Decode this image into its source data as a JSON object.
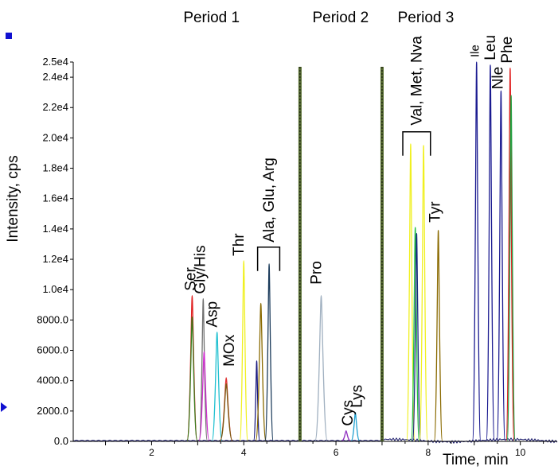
{
  "chart_data": {
    "type": "line",
    "title": "",
    "xlabel": "Time, min",
    "ylabel": "Intensity, cps",
    "xlim": [
      0.3,
      10.8
    ],
    "ylim": [
      0,
      25000
    ],
    "grid": false,
    "x_ticks": [
      "2",
      "4",
      "6",
      "8",
      "10"
    ],
    "y_ticks": [
      "0.0",
      "2000.0",
      "4000.0",
      "6000.0",
      "8000.0",
      "1.0e4",
      "1.2e4",
      "1.4e4",
      "1.6e4",
      "1.8e4",
      "2.0e4",
      "2.2e4",
      "2.4e4",
      "2.5e4"
    ],
    "periods": [
      {
        "label": "Period 1",
        "center": 3.3
      },
      {
        "label": "Period 2",
        "center": 6.1
      },
      {
        "label": "Period 3",
        "center": 7.95
      }
    ],
    "period_dividers": [
      5.22,
      7.0
    ],
    "peaks": [
      {
        "label": "Ser",
        "rt": 2.88,
        "height": 9600,
        "color": "#e02020",
        "width": 0.05
      },
      {
        "label": "",
        "rt": 2.88,
        "height": 8200,
        "color": "#3a7d1e",
        "width": 0.05
      },
      {
        "label": "Gly/His",
        "rt": 3.12,
        "height": 9400,
        "color": "#707070",
        "width": 0.04
      },
      {
        "label": "",
        "rt": 3.14,
        "height": 5900,
        "color": "#d030d0",
        "width": 0.05
      },
      {
        "label": "Asp",
        "rt": 3.42,
        "height": 7200,
        "color": "#20c0d0",
        "width": 0.05
      },
      {
        "label": "MOx",
        "rt": 3.62,
        "height": 4200,
        "color": "#e03030",
        "width": 0.06
      },
      {
        "label": "",
        "rt": 3.62,
        "height": 3800,
        "color": "#7a5a10",
        "width": 0.06
      },
      {
        "label": "Thr",
        "rt": 4.0,
        "height": 11900,
        "color": "#f0f020",
        "width": 0.04
      },
      {
        "label": "",
        "rt": 4.28,
        "height": 5300,
        "color": "#1a1a80",
        "width": 0.03
      },
      {
        "label": "",
        "rt": 4.37,
        "height": 9100,
        "color": "#8a6a00",
        "width": 0.05
      },
      {
        "label": "Ala, Glu, Arg",
        "rt": 4.55,
        "height": 11700,
        "color": "#1a3a5a",
        "width": 0.04
      },
      {
        "label": "Pro",
        "rt": 5.68,
        "height": 9600,
        "color": "#a0b0c0",
        "width": 0.06
      },
      {
        "label": "Cys",
        "rt": 6.22,
        "height": 700,
        "color": "#9030c0",
        "width": 0.04
      },
      {
        "label": "Lys",
        "rt": 6.42,
        "height": 1900,
        "color": "#20a0d0",
        "width": 0.04
      },
      {
        "label": "",
        "rt": 7.62,
        "height": 19600,
        "color": "#f0f020",
        "width": 0.04
      },
      {
        "label": "",
        "rt": 7.72,
        "height": 14100,
        "color": "#20c040",
        "width": 0.04
      },
      {
        "label": "",
        "rt": 7.75,
        "height": 13700,
        "color": "#1a2a80",
        "width": 0.04
      },
      {
        "label": "Val, Met, Nva",
        "rt": 7.9,
        "height": 19500,
        "color": "#f0f020",
        "width": 0.04
      },
      {
        "label": "Tyr",
        "rt": 8.22,
        "height": 13900,
        "color": "#8a6a00",
        "width": 0.04
      },
      {
        "label": "Ile",
        "rt": 9.05,
        "height": 25000,
        "color": "#1a1a90",
        "width": 0.04
      },
      {
        "label": "Leu",
        "rt": 9.35,
        "height": 24800,
        "color": "#1a1a90",
        "width": 0.04
      },
      {
        "label": "Nle",
        "rt": 9.58,
        "height": 23100,
        "color": "#1a1a90",
        "width": 0.04
      },
      {
        "label": "Phe",
        "rt": 9.78,
        "height": 24600,
        "color": "#e02020",
        "width": 0.04
      },
      {
        "label": "",
        "rt": 9.8,
        "height": 22800,
        "color": "#20a040",
        "width": 0.04
      }
    ],
    "brackets": [
      {
        "from": 4.3,
        "to": 4.78,
        "height": 12800
      },
      {
        "from": 7.45,
        "to": 8.05,
        "height": 20400
      }
    ]
  }
}
